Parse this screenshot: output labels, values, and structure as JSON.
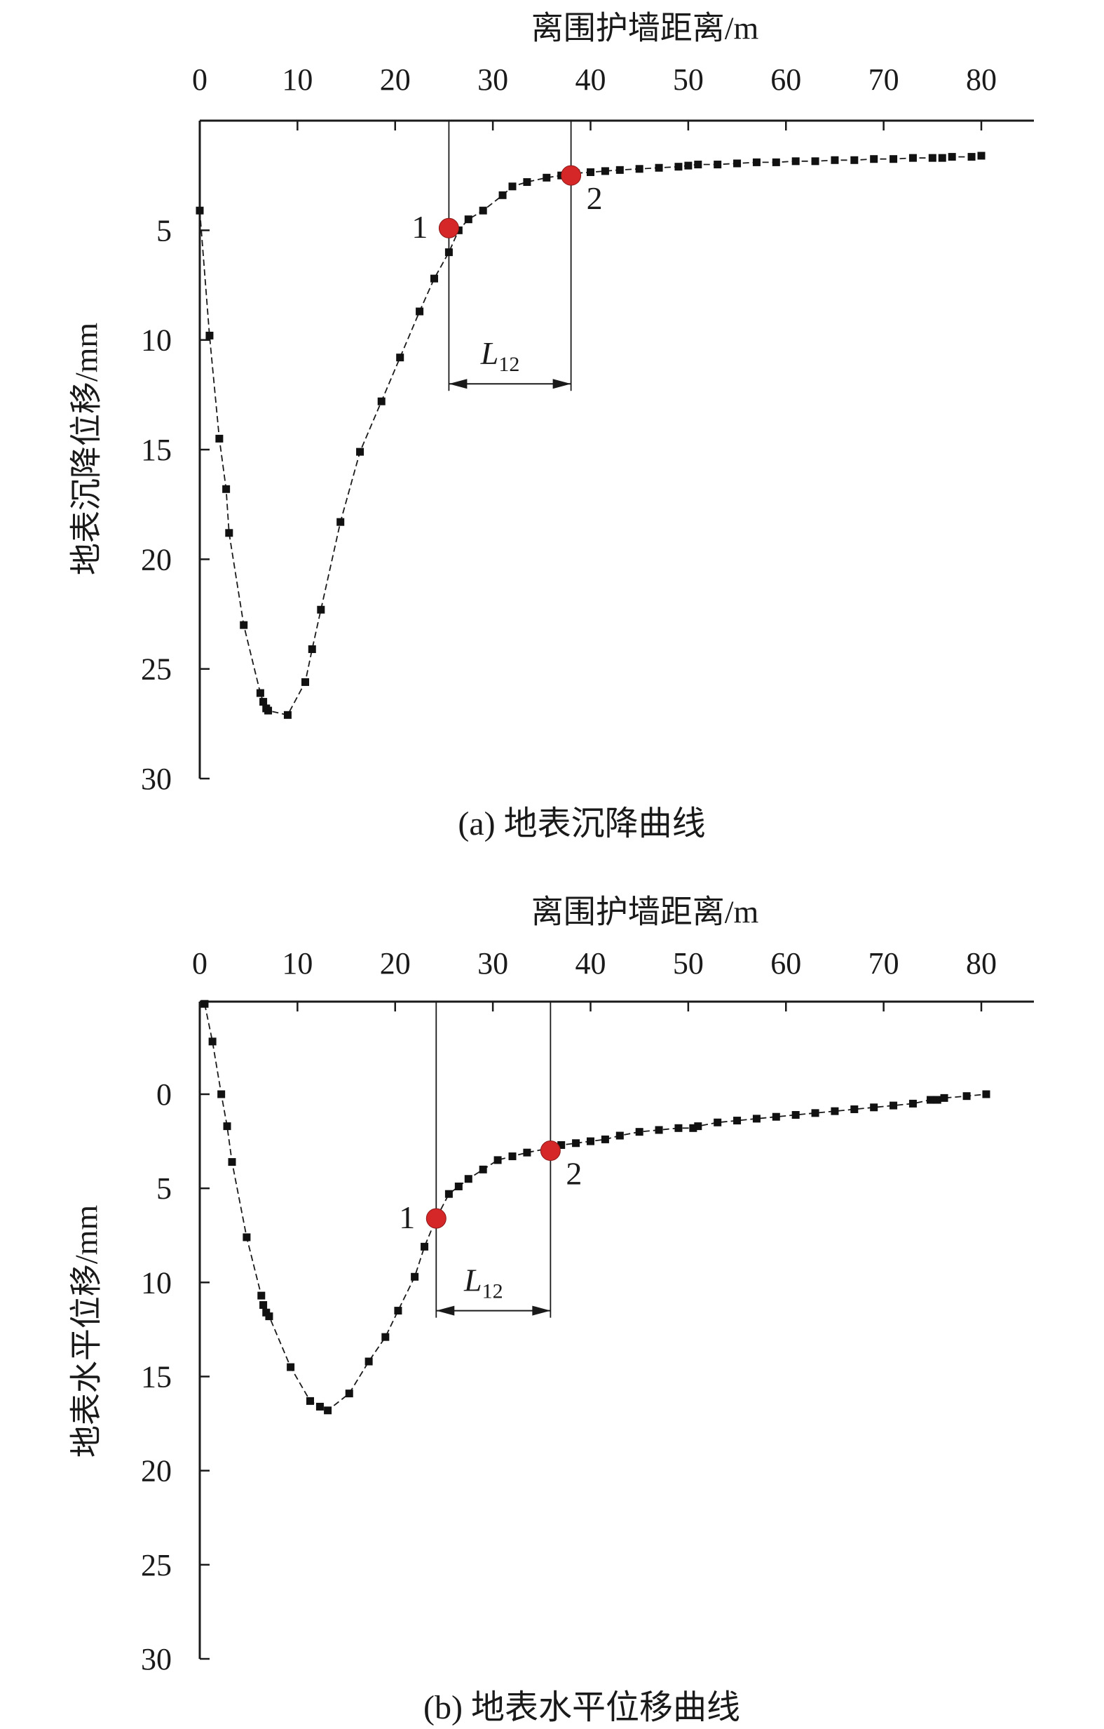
{
  "chart_data": [
    {
      "type": "scatter",
      "caption": "(a) 地表沉降曲线",
      "xlabel": "离围护墙距离/m",
      "ylabel": "地表沉降位移/mm",
      "x_position": "top",
      "y_inverted": true,
      "xlim": [
        0,
        85
      ],
      "ylim": [
        0,
        30
      ],
      "x_ticks": [
        0,
        10,
        20,
        30,
        40,
        50,
        60,
        70,
        80
      ],
      "y_ticks": [
        5,
        10,
        15,
        20,
        25,
        30
      ],
      "grid": false,
      "series": [
        {
          "x": [
            0,
            1,
            2,
            2.7,
            3,
            4.5,
            6.2,
            6.5,
            6.8,
            7,
            9,
            10.8,
            11.5,
            12.4,
            14.4,
            16.4,
            18.6,
            20.5,
            22.5,
            24,
            25.5,
            26.5,
            27.5,
            29,
            31,
            32,
            33.5,
            35.5,
            37,
            38.5,
            40,
            41.5,
            43,
            45,
            47,
            49,
            50,
            51,
            53,
            55,
            57,
            59,
            61,
            63,
            65,
            67,
            69,
            71,
            73,
            75,
            76,
            77,
            79,
            80
          ],
          "y": [
            4.1,
            9.8,
            14.5,
            16.8,
            18.8,
            23,
            26.1,
            26.5,
            26.8,
            26.9,
            27.1,
            25.6,
            24.1,
            22.3,
            18.3,
            15.1,
            12.8,
            10.8,
            8.7,
            7.2,
            6,
            5,
            4.5,
            4.1,
            3.4,
            3.0,
            2.8,
            2.6,
            2.5,
            2.4,
            2.35,
            2.3,
            2.25,
            2.2,
            2.15,
            2.1,
            2.05,
            2.0,
            2.0,
            1.95,
            1.9,
            1.9,
            1.85,
            1.85,
            1.8,
            1.8,
            1.75,
            1.75,
            1.7,
            1.7,
            1.7,
            1.65,
            1.65,
            1.6
          ]
        }
      ],
      "markers": [
        {
          "label": "1",
          "x": 25.5,
          "y": 4.9
        },
        {
          "label": "2",
          "x": 38,
          "y": 2.5
        }
      ],
      "dimension": {
        "label_main": "L",
        "label_sub": "12",
        "x_from": 25.5,
        "x_to": 38,
        "y": 12
      }
    },
    {
      "type": "scatter",
      "caption": "(b) 地表水平位移曲线",
      "xlabel": "离围护墙距离/m",
      "ylabel": "地表水平位移/mm",
      "x_position": "top",
      "y_inverted": true,
      "xlim": [
        0,
        85
      ],
      "ylim": [
        -5,
        30
      ],
      "x_ticks": [
        0,
        10,
        20,
        30,
        40,
        50,
        60,
        70,
        80
      ],
      "y_ticks": [
        0,
        5,
        10,
        15,
        20,
        25,
        30
      ],
      "grid": false,
      "series": [
        {
          "x": [
            0.5,
            1.3,
            2.2,
            2.8,
            3.3,
            4.8,
            6.3,
            6.5,
            6.8,
            7.1,
            9.3,
            11.3,
            12.3,
            13.1,
            15.3,
            17.3,
            19,
            20.3,
            22,
            23,
            24.2,
            25.5,
            26.5,
            27.5,
            29,
            30.5,
            32,
            33.5,
            35.5,
            37,
            38.5,
            40,
            41.5,
            43,
            45,
            47,
            49,
            50.5,
            51,
            53,
            55,
            57,
            59,
            61,
            63,
            65,
            67,
            69,
            71,
            73,
            74.8,
            75.5,
            76.2,
            78.5,
            80.5
          ],
          "y": [
            -4.8,
            -2.8,
            0,
            1.7,
            3.6,
            7.6,
            10.7,
            11.2,
            11.6,
            11.8,
            14.5,
            16.3,
            16.6,
            16.8,
            15.9,
            14.2,
            12.9,
            11.5,
            9.7,
            8.1,
            6.6,
            5.3,
            4.9,
            4.5,
            4.0,
            3.5,
            3.3,
            3.1,
            2.9,
            2.7,
            2.6,
            2.5,
            2.4,
            2.2,
            2.0,
            1.9,
            1.8,
            1.8,
            1.7,
            1.5,
            1.4,
            1.3,
            1.2,
            1.1,
            1.0,
            0.9,
            0.8,
            0.7,
            0.6,
            0.5,
            0.3,
            0.3,
            0.2,
            0.1,
            0.0
          ]
        }
      ],
      "markers": [
        {
          "label": "1",
          "x": 24.2,
          "y": 6.6
        },
        {
          "label": "2",
          "x": 35.9,
          "y": 3.0
        }
      ],
      "dimension": {
        "label_main": "L",
        "label_sub": "12",
        "x_from": 24.2,
        "x_to": 35.9,
        "y": 11.5
      }
    }
  ]
}
